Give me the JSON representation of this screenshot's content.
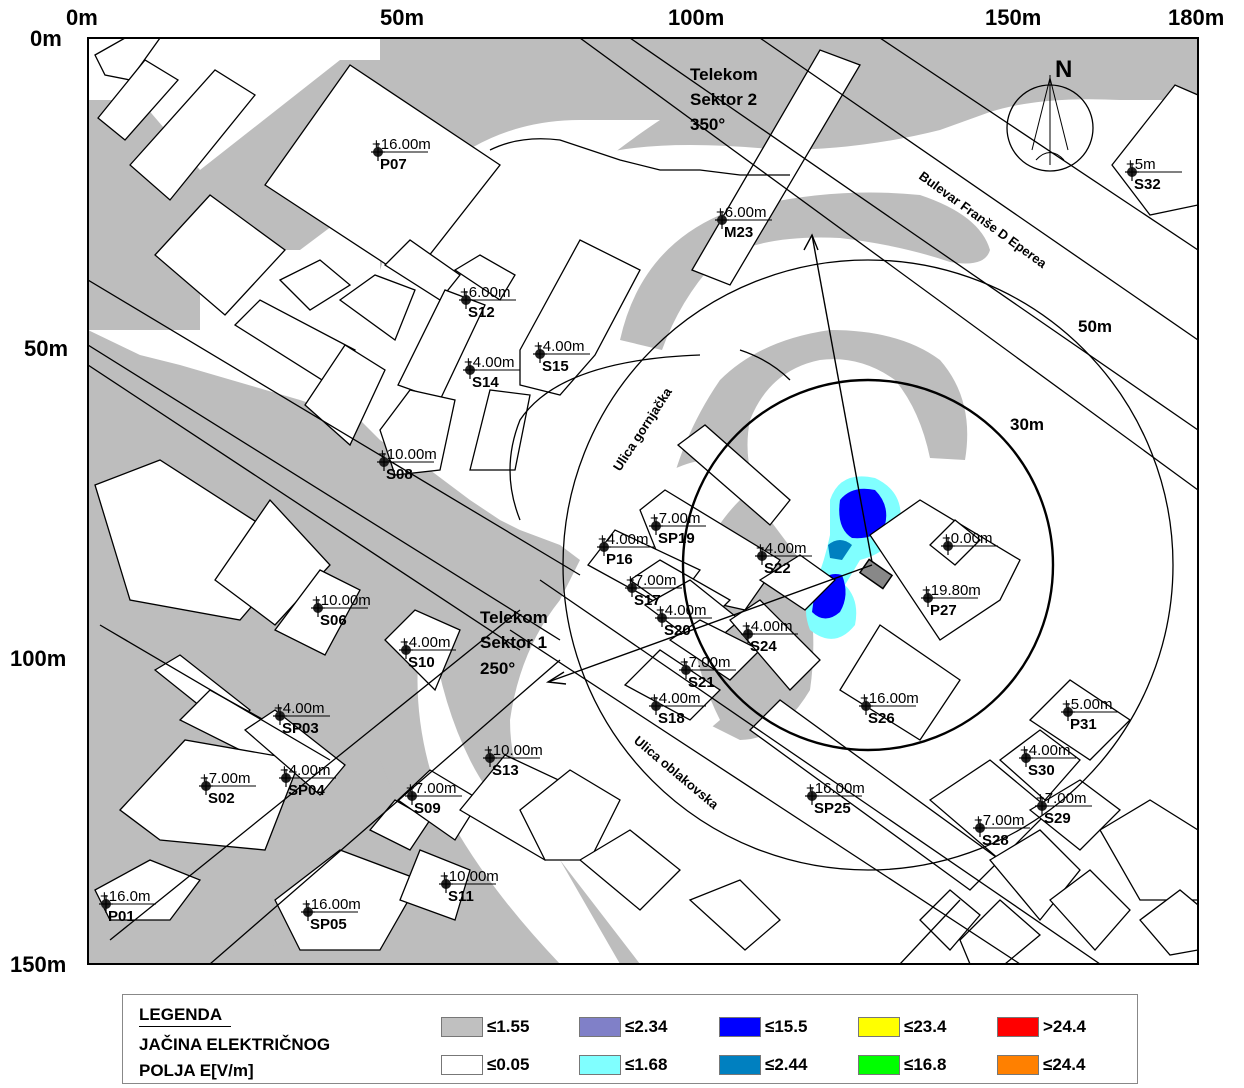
{
  "axis": {
    "x_labels": [
      "0m",
      "50m",
      "100m",
      "150m",
      "180m"
    ],
    "y_labels": [
      "0m",
      "50m",
      "100m",
      "150m"
    ]
  },
  "north": "N",
  "sectors": [
    {
      "name": "Telekom",
      "line2": "Sektor 2",
      "angle": "350°"
    },
    {
      "name": "Telekom",
      "line2": "Sektor 1",
      "angle": "250°"
    }
  ],
  "streets": {
    "bulevar": "Bulevar Franše D Eperea",
    "gornjacka": "Ulica gornjačka",
    "oblakovska": "Ulica oblakovska"
  },
  "radii": {
    "r50": "50m",
    "r30": "30m"
  },
  "points": [
    {
      "id": "P07",
      "h": "+16.00m"
    },
    {
      "id": "S32",
      "h": "+5m"
    },
    {
      "id": "M23",
      "h": "+6.00m"
    },
    {
      "id": "S12",
      "h": "+6.00m"
    },
    {
      "id": "S15",
      "h": "+4.00m"
    },
    {
      "id": "S14",
      "h": "+4.00m"
    },
    {
      "id": "S08",
      "h": "+10.00m"
    },
    {
      "id": "SP19",
      "h": "+7.00m"
    },
    {
      "id": "P16",
      "h": "+4.00m"
    },
    {
      "id": "S22",
      "h": "+4.00m"
    },
    {
      "id": "P27",
      "h": "+19.80m"
    },
    {
      "id": "",
      "h": "+0.00m"
    },
    {
      "id": "S17",
      "h": "+7.00m"
    },
    {
      "id": "S20",
      "h": "+4.00m"
    },
    {
      "id": "S24",
      "h": "+4.00m"
    },
    {
      "id": "S06",
      "h": "+10.00m"
    },
    {
      "id": "S10",
      "h": "+4.00m"
    },
    {
      "id": "S21",
      "h": "+7.00m"
    },
    {
      "id": "S18",
      "h": "+4.00m"
    },
    {
      "id": "S26",
      "h": "+16.00m"
    },
    {
      "id": "P31",
      "h": "+5.00m"
    },
    {
      "id": "SP03",
      "h": "+4.00m"
    },
    {
      "id": "S13",
      "h": "+10.00m"
    },
    {
      "id": "S30",
      "h": "+4.00m"
    },
    {
      "id": "S02",
      "h": "+7.00m"
    },
    {
      "id": "SP04",
      "h": "+4.00m"
    },
    {
      "id": "S09",
      "h": "+7.00m"
    },
    {
      "id": "SP25",
      "h": "+16.00m"
    },
    {
      "id": "S29",
      "h": "+7.00m"
    },
    {
      "id": "S28",
      "h": "+7.00m"
    },
    {
      "id": "S11",
      "h": "+10.00m"
    },
    {
      "id": "P01",
      "h": "+16.0m"
    },
    {
      "id": "SP05",
      "h": "+16.00m"
    }
  ],
  "legend": {
    "title1": "LEGENDA",
    "title2": "JAČINA ELEKTRIČNOG",
    "title3": "POLJA E[V/m]",
    "items": [
      {
        "label": "≤1.55",
        "color": "#c0c0c0"
      },
      {
        "label": "≤2.34",
        "color": "#8080c8"
      },
      {
        "label": "≤15.5",
        "color": "#0000ff"
      },
      {
        "label": "≤23.4",
        "color": "#ffff00"
      },
      {
        "label": ">24.4",
        "color": "#ff0000"
      },
      {
        "label": "≤0.05",
        "color": "#ffffff"
      },
      {
        "label": "≤1.68",
        "color": "#80ffff"
      },
      {
        "label": "≤2.44",
        "color": "#0080c0"
      },
      {
        "label": "≤16.8",
        "color": "#00ff00"
      },
      {
        "label": "≤24.4",
        "color": "#ff8000"
      }
    ]
  }
}
